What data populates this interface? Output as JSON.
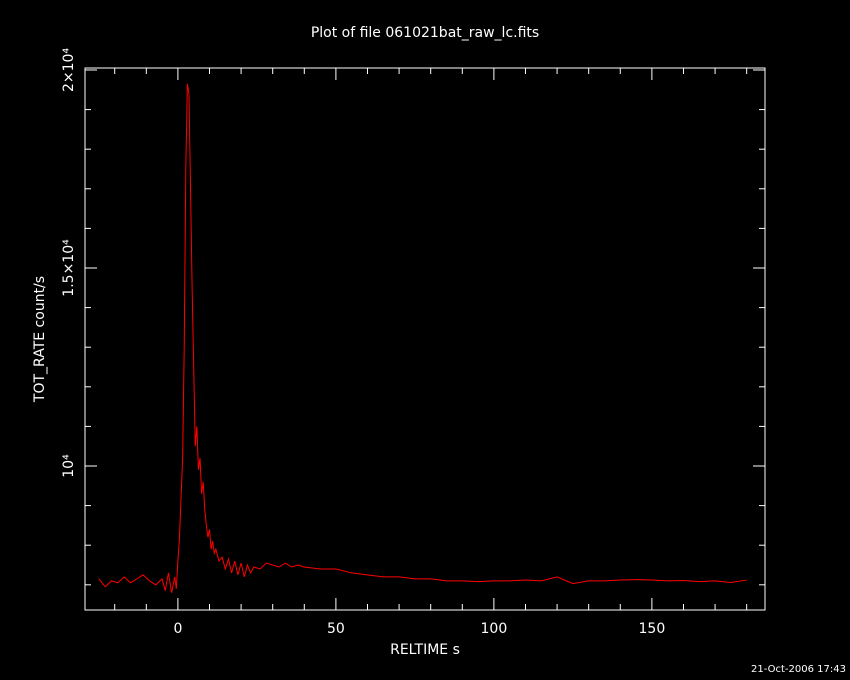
{
  "chart_data": {
    "type": "line",
    "title": "Plot of file 061021bat_raw_lc.fits",
    "x_label": "RELTIME  s",
    "y_label": "TOT_RATE  count/s",
    "footer": "21-Oct-2006 17:43",
    "xlim": [
      -29.4,
      185.8
    ],
    "ylim": [
      6364,
      20050
    ],
    "xticks": [
      0,
      50,
      100,
      150
    ],
    "xminorticks": [
      -20,
      -10,
      10,
      20,
      30,
      40,
      60,
      70,
      80,
      90,
      110,
      120,
      130,
      140,
      160,
      170,
      180
    ],
    "yticks": [
      {
        "value": 10000,
        "label": "10⁴"
      },
      {
        "value": 15000,
        "label": "1.5×10⁴"
      },
      {
        "value": 20000,
        "label": "2×10⁴"
      }
    ],
    "yminorticks": [
      7000,
      8000,
      9000,
      11000,
      12000,
      13000,
      14000,
      16000,
      17000,
      18000,
      19000
    ],
    "series": [
      {
        "name": "TOT_RATE",
        "color": "#ff0000",
        "x": [
          -25,
          -23,
          -21,
          -19,
          -17,
          -15,
          -13,
          -11,
          -9,
          -7,
          -5,
          -4,
          -3,
          -2,
          -1,
          -0.5,
          0,
          0.5,
          1,
          1.5,
          2,
          2.5,
          3,
          3.5,
          4,
          4.5,
          5,
          5.5,
          6,
          6.5,
          7,
          7.5,
          8,
          8.5,
          9,
          9.5,
          10,
          10.5,
          11,
          11.5,
          12,
          13,
          14,
          15,
          16,
          17,
          18,
          19,
          20,
          21,
          22,
          23,
          24,
          26,
          28,
          30,
          32,
          34,
          36,
          38,
          40,
          45,
          50,
          55,
          60,
          65,
          70,
          75,
          80,
          85,
          90,
          95,
          100,
          105,
          110,
          115,
          120,
          125,
          130,
          135,
          140,
          145,
          150,
          155,
          160,
          165,
          170,
          175,
          180
        ],
        "values": [
          7150,
          6950,
          7100,
          7050,
          7200,
          7050,
          7150,
          7250,
          7100,
          7000,
          7150,
          6850,
          7300,
          6800,
          7200,
          6900,
          7600,
          8200,
          9200,
          10200,
          13000,
          17500,
          19650,
          19400,
          17000,
          14500,
          12500,
          10500,
          11000,
          9900,
          10200,
          9300,
          9600,
          8900,
          8500,
          8200,
          8400,
          7900,
          8100,
          7800,
          7900,
          7600,
          7700,
          7400,
          7650,
          7300,
          7600,
          7250,
          7550,
          7200,
          7500,
          7300,
          7450,
          7400,
          7550,
          7500,
          7450,
          7550,
          7450,
          7500,
          7450,
          7400,
          7400,
          7300,
          7250,
          7200,
          7200,
          7150,
          7150,
          7100,
          7100,
          7080,
          7100,
          7100,
          7120,
          7100,
          7200,
          7030,
          7100,
          7100,
          7120,
          7130,
          7120,
          7100,
          7110,
          7080,
          7100,
          7060,
          7120
        ]
      }
    ]
  }
}
